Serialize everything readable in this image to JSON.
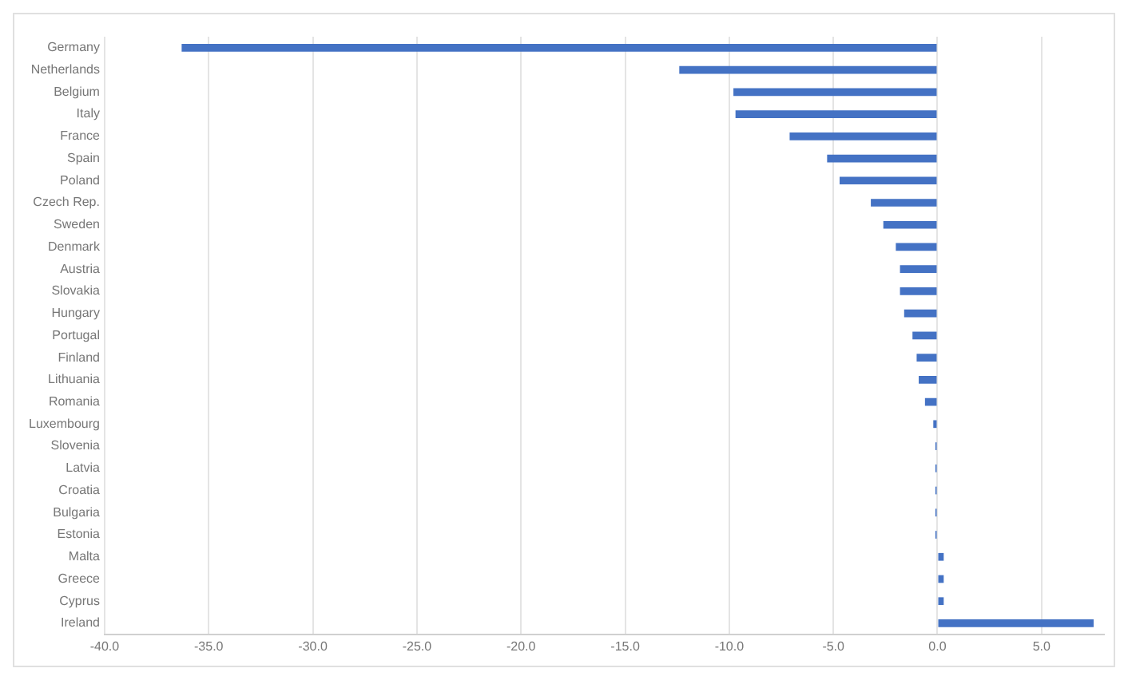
{
  "chart_data": {
    "type": "bar",
    "orientation": "horizontal",
    "categories": [
      "Germany",
      "Netherlands",
      "Belgium",
      "Italy",
      "France",
      "Spain",
      "Poland",
      "Czech Rep.",
      "Sweden",
      "Denmark",
      "Austria",
      "Slovakia",
      "Hungary",
      "Portugal",
      "Finland",
      "Lithuania",
      "Romania",
      "Luxembourg",
      "Slovenia",
      "Latvia",
      "Croatia",
      "Bulgaria",
      "Estonia",
      "Malta",
      "Greece",
      "Cyprus",
      "Ireland"
    ],
    "values": [
      -36.3,
      -12.4,
      -9.8,
      -9.7,
      -7.1,
      -5.3,
      -4.7,
      -3.2,
      -2.6,
      -2.0,
      -1.8,
      -1.8,
      -1.6,
      -1.2,
      -1.0,
      -0.9,
      -0.6,
      -0.2,
      -0.1,
      -0.1,
      -0.1,
      -0.1,
      -0.1,
      0.3,
      0.3,
      0.3,
      7.5
    ],
    "color": "#4472c4",
    "xlim": [
      -40,
      8
    ],
    "xticks": [
      {
        "value": -40,
        "label": "-40.0"
      },
      {
        "value": -35,
        "label": "-35.0"
      },
      {
        "value": -30,
        "label": "-30.0"
      },
      {
        "value": -25,
        "label": "-25.0"
      },
      {
        "value": -20,
        "label": "-20.0"
      },
      {
        "value": -15,
        "label": "-15.0"
      },
      {
        "value": -10,
        "label": "-10.0"
      },
      {
        "value": -5,
        "label": "-5.0"
      },
      {
        "value": 0,
        "label": "0.0"
      },
      {
        "value": 5,
        "label": "5.0"
      }
    ],
    "grid": "x"
  }
}
